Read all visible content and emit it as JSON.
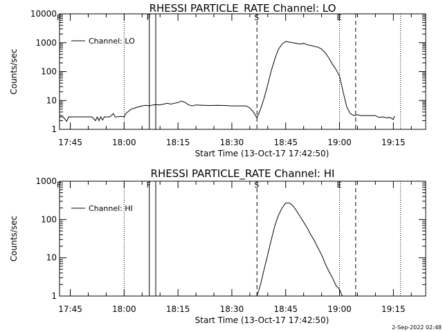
{
  "footer_stamp": "2-Sep-2022 02:48",
  "chart_data": [
    {
      "type": "line",
      "title": "RHESSI PARTICLE_RATE Channel: LO",
      "xlabel": "Start Time (13-Oct-17 17:42:50)",
      "ylabel": "Counts/sec",
      "yscale": "log",
      "ylim": [
        1,
        10000
      ],
      "xlim": [
        "17:42",
        "19:24"
      ],
      "x_ticks": [
        "17:45",
        "18:00",
        "18:15",
        "18:30",
        "18:45",
        "19:00",
        "19:15"
      ],
      "y_ticks": [
        "1",
        "10",
        "100",
        "1000",
        "10000"
      ],
      "legend": "top-left",
      "series": [
        {
          "name": "Channel: LO",
          "points": [
            [
              "17:42",
              2.7
            ],
            [
              "17:43",
              2.7
            ],
            [
              "17:44",
              1.9
            ],
            [
              "17:44.5",
              2.7
            ],
            [
              "17:46",
              2.7
            ],
            [
              "17:48",
              2.7
            ],
            [
              "17:50",
              2.7
            ],
            [
              "17:51",
              2.7
            ],
            [
              "17:52",
              2.0
            ],
            [
              "17:52.5",
              2.7
            ],
            [
              "17:53",
              2.0
            ],
            [
              "17:53.5",
              2.7
            ],
            [
              "17:54",
              2.1
            ],
            [
              "17:54.5",
              2.7
            ],
            [
              "17:55",
              2.7
            ],
            [
              "17:56",
              2.7
            ],
            [
              "17:57",
              3.5
            ],
            [
              "17:57.5",
              2.7
            ],
            [
              "17:58",
              2.7
            ],
            [
              "17:59",
              2.8
            ],
            [
              "18:00",
              2.7
            ],
            [
              "18:00.5",
              3.6
            ],
            [
              "18:01",
              4.0
            ],
            [
              "18:02",
              5.0
            ],
            [
              "18:03",
              5.5
            ],
            [
              "18:04",
              6.0
            ],
            [
              "18:05",
              6.5
            ],
            [
              "18:06",
              6.8
            ],
            [
              "18:07",
              6.5
            ],
            [
              "18:08",
              7.0
            ],
            [
              "18:09",
              7.2
            ],
            [
              "18:10",
              7.0
            ],
            [
              "18:11",
              7.5
            ],
            [
              "18:12",
              8.0
            ],
            [
              "18:13",
              7.5
            ],
            [
              "18:14",
              8.0
            ],
            [
              "18:15",
              8.5
            ],
            [
              "18:16",
              9.5
            ],
            [
              "18:17",
              8.5
            ],
            [
              "18:18",
              7.0
            ],
            [
              "18:19",
              6.5
            ],
            [
              "18:20",
              7.0
            ],
            [
              "18:22",
              6.8
            ],
            [
              "18:24",
              6.7
            ],
            [
              "18:26",
              6.8
            ],
            [
              "18:28",
              6.7
            ],
            [
              "18:30",
              6.5
            ],
            [
              "18:32",
              6.5
            ],
            [
              "18:34",
              6.5
            ],
            [
              "18:35",
              5.5
            ],
            [
              "18:36",
              4.0
            ],
            [
              "18:37",
              2.5
            ],
            [
              "18:38",
              5.0
            ],
            [
              "18:39",
              12
            ],
            [
              "18:40",
              35
            ],
            [
              "18:41",
              110
            ],
            [
              "18:42",
              280
            ],
            [
              "18:43",
              600
            ],
            [
              "18:44",
              900
            ],
            [
              "18:45",
              1100
            ],
            [
              "18:46",
              1050
            ],
            [
              "18:47",
              1000
            ],
            [
              "18:48",
              950
            ],
            [
              "18:49",
              900
            ],
            [
              "18:50",
              950
            ],
            [
              "18:51",
              850
            ],
            [
              "18:52",
              800
            ],
            [
              "18:53",
              750
            ],
            [
              "18:54",
              700
            ],
            [
              "18:55",
              600
            ],
            [
              "18:56",
              450
            ],
            [
              "18:57",
              300
            ],
            [
              "18:58",
              180
            ],
            [
              "18:59",
              120
            ],
            [
              "19:00",
              70
            ],
            [
              "19:01",
              20
            ],
            [
              "19:02",
              6.0
            ],
            [
              "19:03",
              3.5
            ],
            [
              "19:04",
              3.0
            ],
            [
              "19:05",
              3.2
            ],
            [
              "19:06",
              3.0
            ],
            [
              "19:08",
              3.0
            ],
            [
              "19:10",
              3.0
            ],
            [
              "19:11",
              2.6
            ],
            [
              "19:12",
              2.7
            ],
            [
              "19:13",
              2.5
            ],
            [
              "19:14",
              2.6
            ],
            [
              "19:15",
              2.2
            ],
            [
              "19:15.3",
              2.9
            ]
          ]
        }
      ],
      "markers": [
        {
          "label": "F",
          "time": "17:42",
          "style": "dotted"
        },
        {
          "label": "",
          "time": "18:00",
          "style": "dotted"
        },
        {
          "label": "F",
          "time": "18:07",
          "style": "solid"
        },
        {
          "label": "",
          "time": "18:08.8",
          "style": "solid"
        },
        {
          "label": "S",
          "time": "18:37",
          "style": "dashed"
        },
        {
          "label": "E",
          "time": "19:00",
          "style": "dotted"
        },
        {
          "label": "",
          "time": "19:04.5",
          "style": "dashed"
        },
        {
          "label": "",
          "time": "19:17",
          "style": "dotted"
        }
      ]
    },
    {
      "type": "line",
      "title": "RHESSI PARTICLE_RATE Channel: HI",
      "xlabel": "Start Time (13-Oct-17 17:42:50)",
      "ylabel": "Counts/sec",
      "yscale": "log",
      "ylim": [
        1,
        1000
      ],
      "xlim": [
        "17:42",
        "19:24"
      ],
      "x_ticks": [
        "17:45",
        "18:00",
        "18:15",
        "18:30",
        "18:45",
        "19:00",
        "19:15"
      ],
      "y_ticks": [
        "1",
        "10",
        "100",
        "1000"
      ],
      "legend": "top-left",
      "series": [
        {
          "name": "Channel: HI",
          "points": [
            [
              "18:37",
              1.0
            ],
            [
              "18:38",
              2.0
            ],
            [
              "18:39",
              5.0
            ],
            [
              "18:40",
              12
            ],
            [
              "18:41",
              30
            ],
            [
              "18:42",
              70
            ],
            [
              "18:43",
              130
            ],
            [
              "18:44",
              200
            ],
            [
              "18:45",
              270
            ],
            [
              "18:46",
              270
            ],
            [
              "18:47",
              230
            ],
            [
              "18:48",
              170
            ],
            [
              "18:49",
              120
            ],
            [
              "18:50",
              85
            ],
            [
              "18:51",
              60
            ],
            [
              "18:52",
              40
            ],
            [
              "18:53",
              28
            ],
            [
              "18:54",
              18
            ],
            [
              "18:55",
              12
            ],
            [
              "18:56",
              7.0
            ],
            [
              "18:57",
              4.5
            ],
            [
              "18:58",
              3.0
            ],
            [
              "18:59",
              1.9
            ],
            [
              "19:00",
              1.5
            ],
            [
              "19:00.4",
              1.2
            ],
            [
              "19:00.8",
              1.0
            ]
          ]
        }
      ],
      "markers": [
        {
          "label": "F",
          "time": "17:42",
          "style": "dotted"
        },
        {
          "label": "",
          "time": "18:00",
          "style": "dotted"
        },
        {
          "label": "F",
          "time": "18:07",
          "style": "solid"
        },
        {
          "label": "",
          "time": "18:08.8",
          "style": "solid"
        },
        {
          "label": "S",
          "time": "18:37",
          "style": "dashed"
        },
        {
          "label": "E",
          "time": "19:00",
          "style": "dotted"
        },
        {
          "label": "",
          "time": "19:04.5",
          "style": "dashed"
        },
        {
          "label": "",
          "time": "19:17",
          "style": "dotted"
        }
      ]
    }
  ]
}
